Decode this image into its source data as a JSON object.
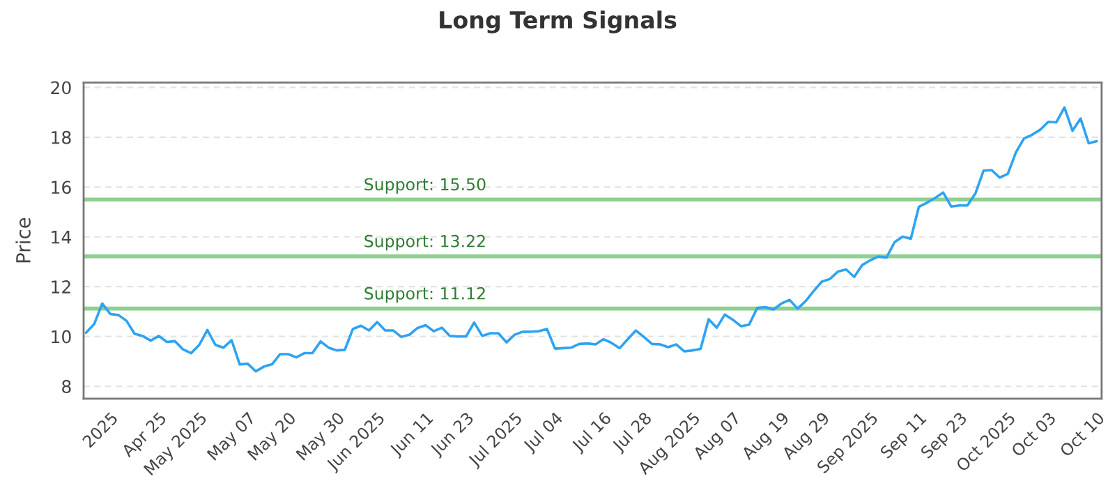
{
  "chart_data": {
    "type": "line",
    "title": "Long Term Signals",
    "ylabel": "Price",
    "categories": [
      null,
      null,
      null,
      "2025",
      null,
      null,
      null,
      null,
      null,
      "Apr 25",
      null,
      null,
      null,
      null,
      "May 2025",
      null,
      null,
      null,
      null,
      null,
      "May 07",
      null,
      null,
      null,
      null,
      "May 20",
      null,
      null,
      null,
      null,
      null,
      "May 30",
      null,
      null,
      null,
      null,
      "Jun 2025",
      null,
      null,
      null,
      null,
      null,
      "Jun 11",
      null,
      null,
      null,
      null,
      "Jun 23",
      null,
      null,
      null,
      null,
      null,
      "Jul 2025",
      null,
      null,
      null,
      null,
      "Jul 04",
      null,
      null,
      null,
      null,
      null,
      "Jul 16",
      null,
      null,
      null,
      null,
      "Jul 28",
      null,
      null,
      null,
      null,
      null,
      "Aug 2025",
      null,
      null,
      null,
      null,
      "Aug 07",
      null,
      null,
      null,
      null,
      null,
      "Aug 19",
      null,
      null,
      null,
      null,
      "Aug 29",
      null,
      null,
      null,
      null,
      null,
      "Sep 2025",
      null,
      null,
      null,
      null,
      null,
      "Sep 11",
      null,
      null,
      null,
      null,
      "Sep 23",
      null,
      null,
      null,
      null,
      null,
      "Oct 2025",
      null,
      null,
      null,
      null,
      "Oct 03",
      null,
      null,
      null,
      null,
      null,
      "Oct 10"
    ],
    "series": [
      {
        "color": "#2ea3f2",
        "values": [
          10.15,
          10.49,
          11.32,
          10.9,
          10.86,
          10.63,
          10.11,
          10.02,
          9.83,
          10.02,
          9.78,
          9.81,
          9.48,
          9.33,
          9.66,
          10.26,
          9.66,
          9.55,
          9.85,
          8.88,
          8.9,
          8.6,
          8.79,
          8.88,
          9.29,
          9.29,
          9.16,
          9.33,
          9.33,
          9.8,
          9.55,
          9.44,
          9.46,
          10.3,
          10.43,
          10.24,
          10.58,
          10.24,
          10.24,
          9.98,
          10.07,
          10.34,
          10.45,
          10.21,
          10.35,
          10.02,
          10.0,
          10.0,
          10.56,
          10.02,
          10.13,
          10.13,
          9.76,
          10.07,
          10.19,
          10.19,
          10.21,
          10.3,
          9.51,
          9.53,
          9.55,
          9.7,
          9.72,
          9.68,
          9.89,
          9.74,
          9.53,
          9.89,
          10.24,
          9.98,
          9.7,
          9.68,
          9.57,
          9.68,
          9.4,
          9.44,
          9.5,
          10.69,
          10.35,
          10.88,
          10.67,
          10.41,
          10.47,
          11.14,
          11.18,
          11.08,
          11.32,
          11.47,
          11.12,
          11.42,
          11.83,
          12.2,
          12.31,
          12.61,
          12.69,
          12.39,
          12.87,
          13.06,
          13.21,
          13.17,
          13.79,
          14.01,
          13.92,
          15.21,
          15.37,
          15.56,
          15.78,
          15.22,
          15.26,
          15.26,
          15.75,
          16.66,
          16.68,
          16.38,
          16.53,
          17.39,
          17.95,
          18.1,
          18.3,
          18.62,
          18.6,
          19.2,
          18.26,
          18.75,
          17.76,
          17.84
        ]
      }
    ],
    "ylim": [
      7.5,
      20.2
    ],
    "yticks": [
      8,
      10,
      12,
      14,
      16,
      18,
      20
    ],
    "ref_lines": [
      {
        "axis": "y",
        "value": 15.5,
        "label": "Support: 15.50",
        "color": "#8fcf8f"
      },
      {
        "axis": "y",
        "value": 13.22,
        "label": "Support: 13.22",
        "color": "#8fcf8f"
      },
      {
        "axis": "y",
        "value": 11.12,
        "label": "Support: 11.12",
        "color": "#8fcf8f"
      }
    ],
    "grid": "y",
    "marker": "none",
    "line_style": "solid"
  }
}
